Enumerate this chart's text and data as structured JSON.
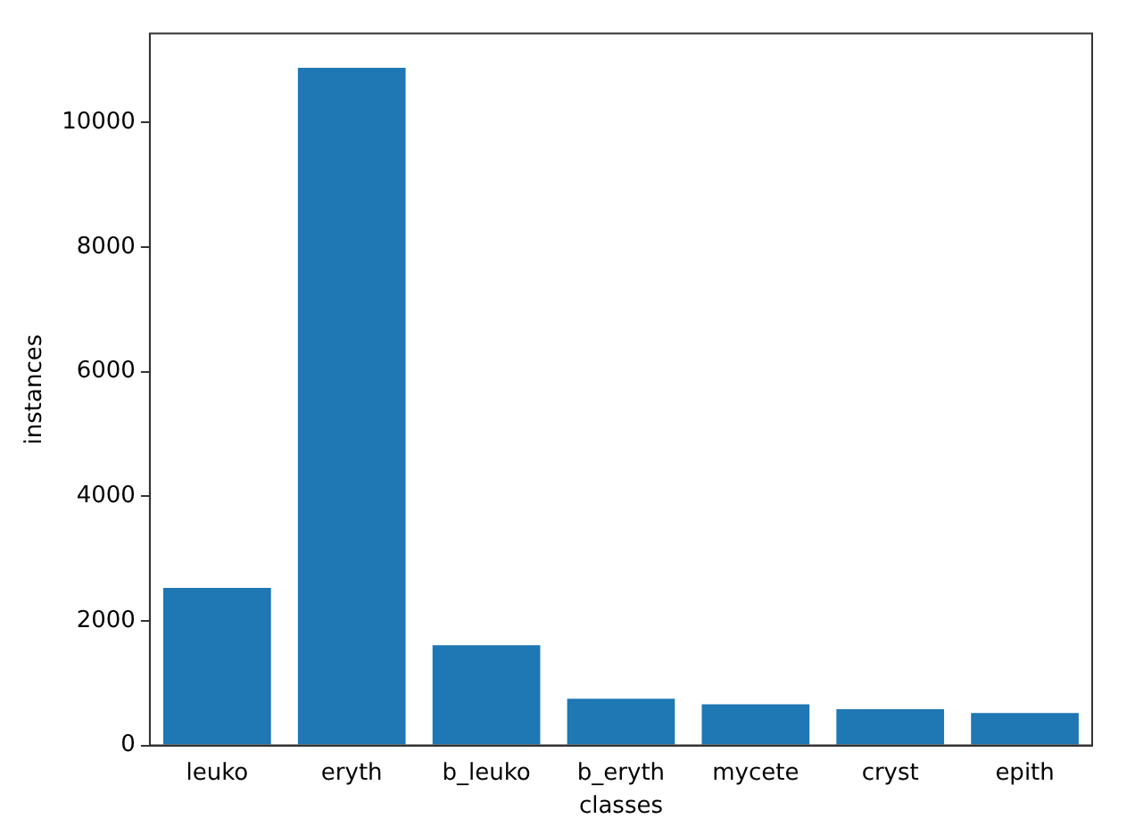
{
  "chart_data": {
    "type": "bar",
    "xlabel": "classes",
    "ylabel": "instances",
    "categories": [
      "leuko",
      "eryth",
      "b_leuko",
      "b_eryth",
      "mycete",
      "cryst",
      "epith"
    ],
    "values": [
      2530,
      10880,
      1610,
      750,
      660,
      580,
      520
    ],
    "color": "#1f77b4",
    "ylim": [
      0,
      11430
    ],
    "yticks": [
      0,
      2000,
      4000,
      6000,
      8000,
      10000
    ],
    "grid": false,
    "legend": false
  }
}
